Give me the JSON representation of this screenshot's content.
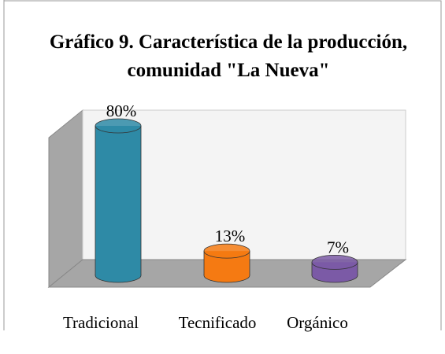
{
  "chart_data": {
    "type": "bar3d",
    "title": "Gráfico 9. Característica de la producción, comunidad \"La Nueva\"",
    "categories": [
      "Tradicional",
      "Tecnificado",
      "Orgánico"
    ],
    "values": [
      80,
      13,
      7
    ],
    "value_labels": [
      "80%",
      "13%",
      "7%"
    ],
    "colors": [
      "#2e8aa6",
      "#f57a12",
      "#7b5aa6"
    ]
  }
}
